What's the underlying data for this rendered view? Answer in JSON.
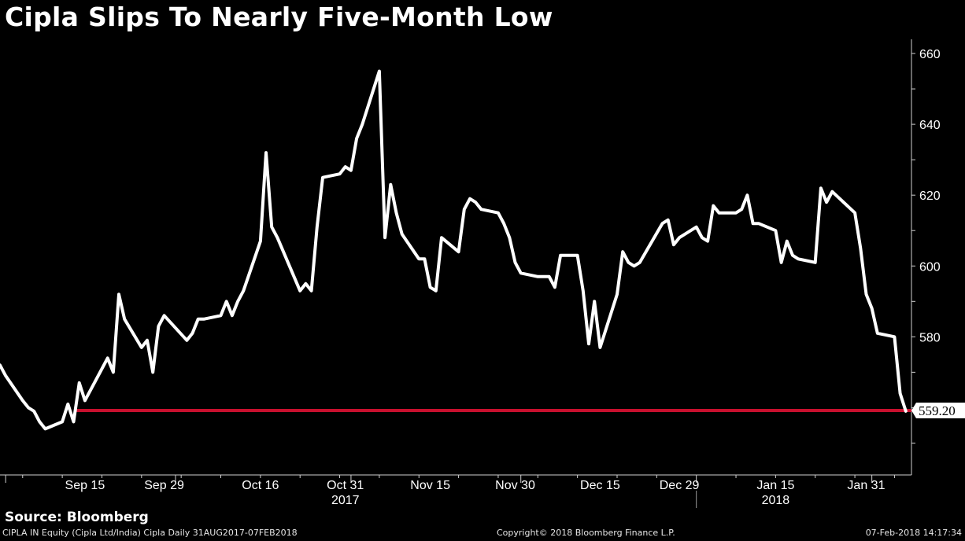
{
  "title": "Cipla Slips To Nearly Five-Month Low",
  "source": "Source: Bloomberg",
  "footer": {
    "left": "CIPLA IN Equity (Cipla Ltd/India) Cipla  Daily 31AUG2017-07FEB2018",
    "center": "Copyright© 2018 Bloomberg Finance L.P.",
    "right": "07-Feb-2018 14:17:34"
  },
  "colors": {
    "background": "#000000",
    "line": "#ffffff",
    "reference_line": "#c8102e"
  },
  "chart_data": {
    "type": "line",
    "title": "Cipla Slips To Nearly Five-Month Low",
    "xlabel": "",
    "ylabel": "",
    "ylim": [
      541,
      664
    ],
    "grid": false,
    "legend": "none",
    "y_axis_side": "right",
    "y_ticks": [
      580,
      600,
      620,
      640,
      660
    ],
    "x_ticks": [
      {
        "date": "2017-09-15",
        "label": "Sep 15"
      },
      {
        "date": "2017-09-29",
        "label": "Sep 29"
      },
      {
        "date": "2017-10-16",
        "label": "Oct 16"
      },
      {
        "date": "2017-10-31",
        "label": "Oct 31"
      },
      {
        "date": "2017-11-15",
        "label": "Nov 15"
      },
      {
        "date": "2017-11-30",
        "label": "Nov 30"
      },
      {
        "date": "2017-12-15",
        "label": "Dec 15"
      },
      {
        "date": "2017-12-29",
        "label": "Dec 29"
      },
      {
        "date": "2018-01-15",
        "label": "Jan 15"
      },
      {
        "date": "2018-01-31",
        "label": "Jan 31"
      }
    ],
    "year_labels": [
      {
        "date": "2017-10-31",
        "label": "2017"
      },
      {
        "date": "2018-01-15",
        "label": "2018"
      }
    ],
    "reference_line": {
      "value": 559.2,
      "label": "559.20"
    },
    "series": [
      {
        "x": [
          "2017-08-31",
          "2017-09-01",
          "2017-09-04",
          "2017-09-05",
          "2017-09-06",
          "2017-09-07",
          "2017-09-08",
          "2017-09-11",
          "2017-09-12",
          "2017-09-13",
          "2017-09-14",
          "2017-09-15",
          "2017-09-18",
          "2017-09-19",
          "2017-09-20",
          "2017-09-21",
          "2017-09-22",
          "2017-09-25",
          "2017-09-26",
          "2017-09-27",
          "2017-09-28",
          "2017-09-29",
          "2017-10-03",
          "2017-10-04",
          "2017-10-05",
          "2017-10-06",
          "2017-10-09",
          "2017-10-10",
          "2017-10-11",
          "2017-10-12",
          "2017-10-13",
          "2017-10-16",
          "2017-10-17",
          "2017-10-18",
          "2017-10-19",
          "2017-10-23",
          "2017-10-24",
          "2017-10-25",
          "2017-10-26",
          "2017-10-27",
          "2017-10-30",
          "2017-10-31",
          "2017-11-01",
          "2017-11-02",
          "2017-11-03",
          "2017-11-06",
          "2017-11-07",
          "2017-11-08",
          "2017-11-09",
          "2017-11-10",
          "2017-11-13",
          "2017-11-14",
          "2017-11-15",
          "2017-11-16",
          "2017-11-17",
          "2017-11-20",
          "2017-11-21",
          "2017-11-22",
          "2017-11-23",
          "2017-11-24",
          "2017-11-27",
          "2017-11-28",
          "2017-11-29",
          "2017-11-30",
          "2017-12-01",
          "2017-12-04",
          "2017-12-05",
          "2017-12-06",
          "2017-12-07",
          "2017-12-08",
          "2017-12-11",
          "2017-12-12",
          "2017-12-13",
          "2017-12-14",
          "2017-12-15",
          "2017-12-18",
          "2017-12-19",
          "2017-12-20",
          "2017-12-21",
          "2017-12-22",
          "2017-12-26",
          "2017-12-27",
          "2017-12-28",
          "2017-12-29",
          "2018-01-01",
          "2018-01-02",
          "2018-01-03",
          "2018-01-04",
          "2018-01-05",
          "2018-01-08",
          "2018-01-09",
          "2018-01-10",
          "2018-01-11",
          "2018-01-12",
          "2018-01-15",
          "2018-01-16",
          "2018-01-17",
          "2018-01-18",
          "2018-01-19",
          "2018-01-22",
          "2018-01-23",
          "2018-01-24",
          "2018-01-25",
          "2018-01-29",
          "2018-01-30",
          "2018-01-31",
          "2018-02-01",
          "2018-02-02",
          "2018-02-05",
          "2018-02-06",
          "2018-02-07"
        ],
        "values": [
          572,
          569,
          562,
          560,
          559,
          556,
          554,
          556,
          561,
          556,
          567,
          562,
          571,
          574,
          570,
          592,
          585,
          577,
          579,
          570,
          583,
          586,
          579,
          581,
          585,
          585,
          586,
          590,
          586,
          590,
          593,
          607,
          632,
          611,
          608,
          593,
          595,
          593,
          611,
          625,
          626,
          628,
          627,
          636,
          640,
          655,
          608,
          623,
          615,
          609,
          602,
          602,
          594,
          593,
          608,
          604,
          616,
          619,
          618,
          616,
          615,
          612,
          608,
          601,
          598,
          597,
          597,
          597,
          594,
          603,
          603,
          593,
          578,
          590,
          577,
          592,
          604,
          601,
          600,
          601,
          612,
          613,
          606,
          608,
          611,
          608,
          607,
          617,
          615,
          615,
          616,
          620,
          612,
          612,
          610,
          601,
          607,
          603,
          602,
          601,
          622,
          618,
          621,
          615,
          605,
          592,
          588,
          581,
          580,
          564,
          559
        ]
      }
    ]
  }
}
